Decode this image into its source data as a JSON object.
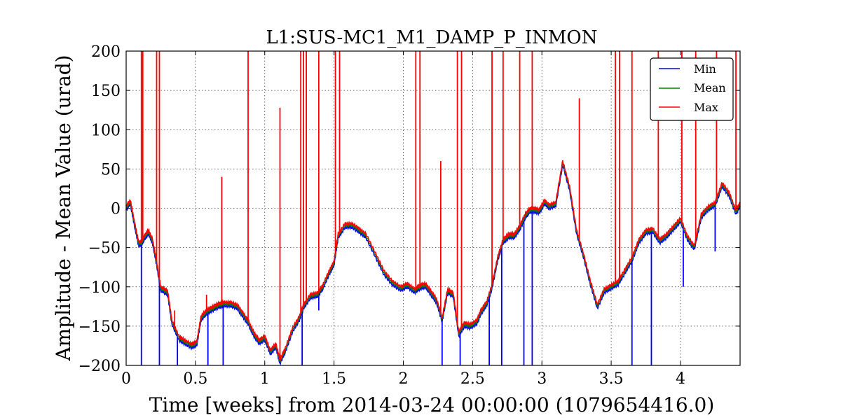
{
  "chart_data": {
    "type": "line",
    "title": "L1:SUS-MC1_M1_DAMP_P_INMON",
    "xlabel": "Time [weeks] from 2014-03-24 00:00:00 (1079654416.0)",
    "ylabel": "Amplitude - Mean Value (urad)",
    "xlim": [
      0,
      4.43
    ],
    "ylim": [
      -200,
      200
    ],
    "xticks": [
      0,
      0.5,
      1,
      1.5,
      2,
      2.5,
      3,
      3.5,
      4
    ],
    "xtick_labels": [
      "0",
      "0.5",
      "1",
      "1.5",
      "2",
      "2.5",
      "3",
      "3.5",
      "4"
    ],
    "yticks": [
      -200,
      -150,
      -100,
      -50,
      0,
      50,
      100,
      150,
      200
    ],
    "ytick_labels": [
      "−200",
      "−150",
      "−100",
      "−50",
      "0",
      "50",
      "100",
      "150",
      "200"
    ],
    "grid": true,
    "legend_position": "top-right",
    "series": [
      {
        "name": "Min",
        "color": "#0000ff"
      },
      {
        "name": "Mean",
        "color": "#008000"
      },
      {
        "name": "Max",
        "color": "#ff0000"
      }
    ],
    "mean_curve": {
      "x": [
        0,
        0.03,
        0.06,
        0.09,
        0.11,
        0.13,
        0.16,
        0.19,
        0.22,
        0.25,
        0.27,
        0.3,
        0.33,
        0.38,
        0.42,
        0.47,
        0.51,
        0.54,
        0.58,
        0.62,
        0.66,
        0.7,
        0.75,
        0.8,
        0.84,
        0.88,
        0.92,
        0.96,
        1.0,
        1.04,
        1.08,
        1.11,
        1.15,
        1.2,
        1.25,
        1.28,
        1.33,
        1.38,
        1.42,
        1.47,
        1.5,
        1.53,
        1.58,
        1.63,
        1.68,
        1.73,
        1.8,
        1.86,
        1.92,
        1.98,
        2.03,
        2.08,
        2.12,
        2.16,
        2.2,
        2.24,
        2.28,
        2.32,
        2.36,
        2.4,
        2.44,
        2.48,
        2.53,
        2.56,
        2.6,
        2.64,
        2.68,
        2.72,
        2.76,
        2.8,
        2.84,
        2.88,
        2.91,
        2.94,
        2.98,
        3.02,
        3.05,
        3.1,
        3.15,
        3.2,
        3.25,
        3.3,
        3.35,
        3.4,
        3.45,
        3.5,
        3.55,
        3.6,
        3.65,
        3.7,
        3.75,
        3.8,
        3.85,
        3.9,
        3.95,
        4.0,
        4.05,
        4.1,
        4.15,
        4.2,
        4.25,
        4.3,
        4.35,
        4.4,
        4.43
      ],
      "y": [
        0,
        8,
        -20,
        -45,
        -45,
        -38,
        -30,
        -42,
        -70,
        -103,
        -104,
        -108,
        -145,
        -165,
        -170,
        -175,
        -172,
        -140,
        -132,
        -128,
        -124,
        -122,
        -122,
        -125,
        -135,
        -145,
        -160,
        -170,
        -165,
        -183,
        -175,
        -195,
        -180,
        -155,
        -140,
        -125,
        -112,
        -110,
        -100,
        -80,
        -70,
        -35,
        -22,
        -22,
        -28,
        -35,
        -60,
        -82,
        -95,
        -102,
        -98,
        -105,
        -100,
        -98,
        -108,
        -118,
        -142,
        -105,
        -110,
        -160,
        -148,
        -150,
        -145,
        -132,
        -122,
        -100,
        -65,
        -42,
        -35,
        -35,
        -25,
        -10,
        -3,
        -2,
        -4,
        8,
        2,
        5,
        58,
        25,
        -30,
        -60,
        -95,
        -125,
        -105,
        -100,
        -95,
        -80,
        -65,
        -42,
        -30,
        -28,
        -42,
        -35,
        -25,
        -15,
        -38,
        -50,
        -10,
        0,
        5,
        30,
        18,
        -5,
        5
      ]
    }
  }
}
